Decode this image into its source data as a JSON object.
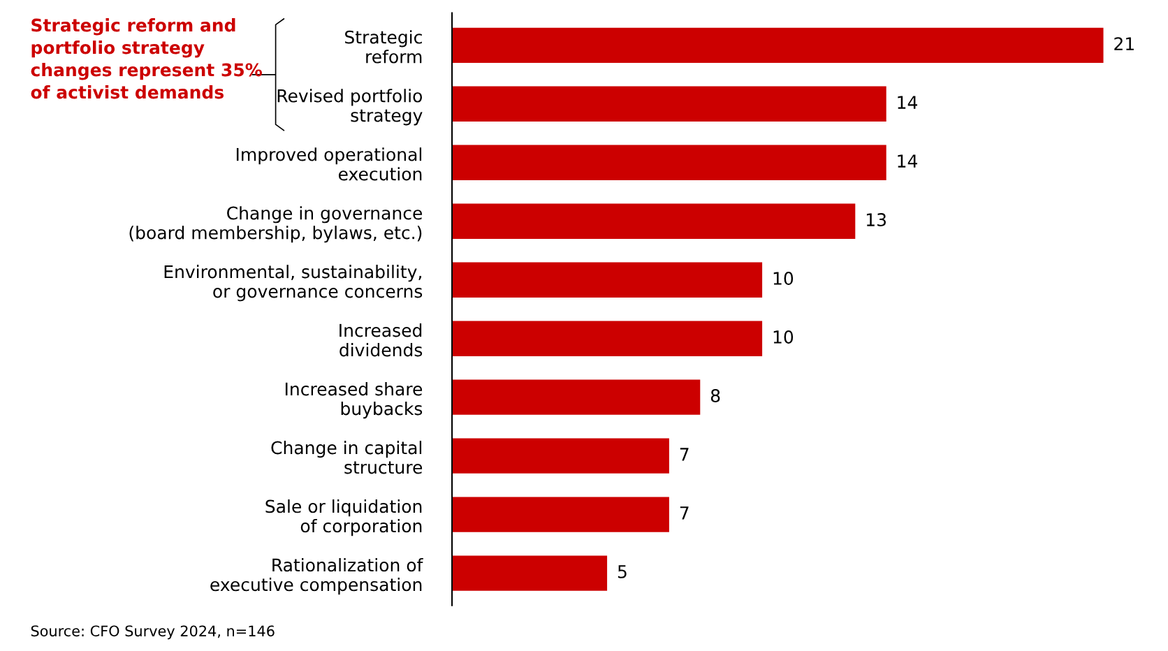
{
  "chart_data": {
    "type": "bar",
    "orientation": "horizontal",
    "categories": [
      "Strategic\nreform",
      "Revised portfolio\nstrategy",
      "Improved operational\nexecution",
      "Change in governance\n(board membership, bylaws, etc.)",
      "Environmental, sustainability,\nor governance concerns",
      "Increased\ndividends",
      "Increased share\nbuybacks",
      "Change in capital\nstructure",
      "Sale or liquidation\nof corporation",
      "Rationalization of\nexecutive compensation"
    ],
    "values": [
      21,
      14,
      14,
      13,
      10,
      10,
      8,
      7,
      7,
      5
    ],
    "color": "#cc0000",
    "data_labels": true,
    "grid": false,
    "legend": false,
    "tick_labels": "y",
    "annotations": [
      "Strategic reform and\nportfolio strategy\nchanges represent 35%\nof activist demands",
      "Source: CFO Survey 2024, n=146"
    ]
  }
}
